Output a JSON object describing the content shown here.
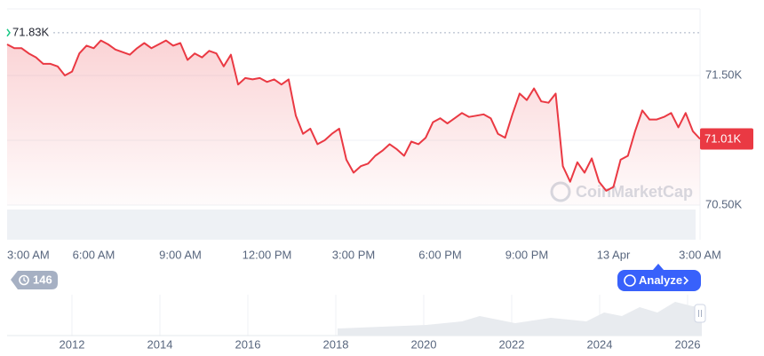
{
  "chart_data": {
    "type": "line",
    "x": [
      0,
      0.25,
      0.5,
      0.75,
      1,
      1.25,
      1.5,
      1.75,
      2,
      2.25,
      2.5,
      2.75,
      3,
      3.25,
      3.5,
      3.75,
      4,
      4.25,
      4.5,
      4.75,
      5,
      5.25,
      5.5,
      5.75,
      6,
      6.25,
      6.5,
      6.75,
      7,
      7.25,
      7.5,
      7.75,
      8,
      8.25,
      8.5,
      8.75,
      9,
      9.25,
      9.5,
      9.75,
      10,
      10.25,
      10.5,
      10.75,
      11,
      11.25,
      11.5,
      11.75,
      12,
      12.25,
      12.5,
      12.75,
      13,
      13.25,
      13.5,
      13.75,
      14,
      14.25,
      14.5,
      14.75,
      15,
      15.25,
      15.5,
      15.75,
      16,
      16.25,
      16.5,
      16.75,
      17,
      17.25,
      17.5,
      17.75,
      18,
      18.25,
      18.5,
      18.75,
      19,
      19.25,
      19.5,
      19.75,
      20,
      20.25,
      20.5,
      20.75,
      21,
      21.25,
      21.5,
      21.75,
      22,
      22.25,
      22.5,
      22.75,
      23,
      23.25,
      23.5,
      23.75,
      24
    ],
    "values": [
      71.74,
      71.71,
      71.71,
      71.67,
      71.64,
      71.59,
      71.59,
      71.57,
      71.5,
      71.53,
      71.67,
      71.73,
      71.71,
      71.77,
      71.74,
      71.7,
      71.68,
      71.66,
      71.71,
      71.75,
      71.71,
      71.74,
      71.77,
      71.73,
      71.75,
      71.62,
      71.67,
      71.64,
      71.69,
      71.67,
      71.57,
      71.66,
      71.43,
      71.48,
      71.47,
      71.48,
      71.45,
      71.47,
      71.43,
      71.47,
      71.19,
      71.05,
      71.09,
      70.97,
      71.0,
      71.05,
      71.09,
      70.85,
      70.75,
      70.8,
      70.82,
      70.88,
      70.92,
      70.97,
      70.93,
      70.88,
      70.99,
      70.97,
      71.02,
      71.14,
      71.17,
      71.13,
      71.17,
      71.21,
      71.18,
      71.19,
      71.2,
      71.17,
      71.05,
      71.02,
      71.2,
      71.36,
      71.31,
      71.4,
      71.3,
      71.29,
      71.36,
      70.8,
      70.68,
      70.83,
      70.75,
      70.86,
      70.68,
      70.61,
      70.64,
      70.85,
      70.88,
      71.07,
      71.23,
      71.16,
      71.16,
      71.18,
      71.21,
      71.1,
      71.21,
      71.07,
      71.01
    ],
    "color": "#ea3943",
    "xlim": [
      0,
      24
    ],
    "xticks": [
      {
        "value": 0,
        "label": "3:00 AM"
      },
      {
        "value": 3,
        "label": "6:00 AM"
      },
      {
        "value": 6,
        "label": "9:00 AM"
      },
      {
        "value": 9,
        "label": "12:00 PM"
      },
      {
        "value": 12,
        "label": "3:00 PM"
      },
      {
        "value": 15,
        "label": "6:00 PM"
      },
      {
        "value": 18,
        "label": "9:00 PM"
      },
      {
        "value": 21,
        "label": "13 Apr"
      },
      {
        "value": 24,
        "label": "3:00 AM"
      }
    ],
    "ylim": [
      70.45,
      72
    ],
    "yticks": [
      {
        "value": 70.5,
        "label": "70.50K"
      },
      {
        "value": 71,
        "label": null
      },
      {
        "value": 71.5,
        "label": "71.50K"
      }
    ],
    "grid": true,
    "high": {
      "value": 71.83,
      "label": "71.83K"
    },
    "last_price": {
      "value": 71.01,
      "label": "71.01K"
    },
    "watermark": "CoinMarketCap"
  },
  "navigator": {
    "year_labels": [
      2012,
      2014,
      2016,
      2018,
      2020,
      2022,
      2024,
      2026
    ]
  },
  "controls": {
    "history_count": 146,
    "analyze_button": "Analyze"
  }
}
